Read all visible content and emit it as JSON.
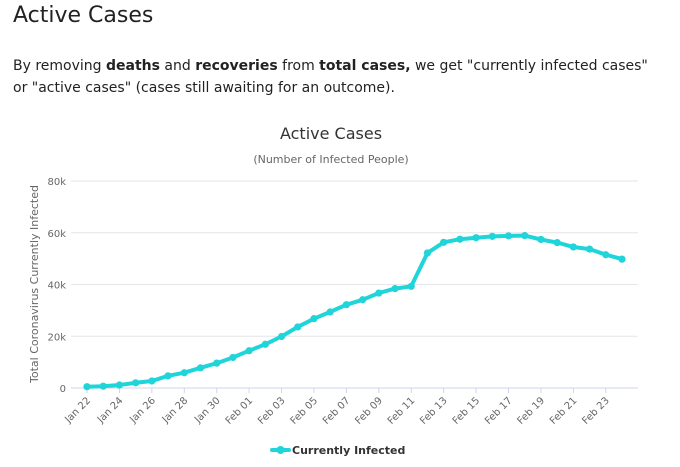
{
  "section": {
    "title": "Active Cases",
    "intro": {
      "t1": "By removing ",
      "b1": "deaths",
      "t2": " and ",
      "b2": "recoveries",
      "t3": " from ",
      "b3": "total cases,",
      "t4": " we get \"currently infected cases\" or \"active cases\" (cases still awaiting for an outcome)."
    }
  },
  "colors": {
    "series": "#1fd5d9",
    "grid": "#e6e6e6",
    "axis": "#ccd6eb"
  },
  "chart_data": {
    "type": "line",
    "title": "Active Cases",
    "subtitle": "(Number of Infected People)",
    "xlabel": "",
    "ylabel": "Total Coronavirus Currently Infected",
    "ylim": [
      0,
      80000
    ],
    "yticks": [
      0,
      20000,
      40000,
      60000,
      80000
    ],
    "ytick_labels": [
      "0",
      "20k",
      "40k",
      "60k",
      "80k"
    ],
    "grid": true,
    "legend_position": "bottom-center",
    "x": [
      "Jan 22",
      "Jan 23",
      "Jan 24",
      "Jan 25",
      "Jan 26",
      "Jan 27",
      "Jan 28",
      "Jan 29",
      "Jan 30",
      "Jan 31",
      "Feb 01",
      "Feb 02",
      "Feb 03",
      "Feb 04",
      "Feb 05",
      "Feb 06",
      "Feb 07",
      "Feb 08",
      "Feb 09",
      "Feb 10",
      "Feb 11",
      "Feb 12",
      "Feb 13",
      "Feb 14",
      "Feb 15",
      "Feb 16",
      "Feb 17",
      "Feb 18",
      "Feb 19",
      "Feb 20",
      "Feb 21",
      "Feb 22",
      "Feb 23",
      "Feb 24"
    ],
    "x_tick_labels": [
      "Jan 22",
      "Jan 24",
      "Jan 26",
      "Jan 28",
      "Jan 30",
      "Feb 01",
      "Feb 03",
      "Feb 05",
      "Feb 07",
      "Feb 09",
      "Feb 11",
      "Feb 13",
      "Feb 15",
      "Feb 17",
      "Feb 19",
      "Feb 21",
      "Feb 23"
    ],
    "series": [
      {
        "name": "Currently Infected",
        "values": [
          510,
          700,
          1150,
          2000,
          2700,
          4700,
          5900,
          7800,
          9600,
          11800,
          14400,
          16900,
          19900,
          23600,
          26800,
          29400,
          32200,
          34100,
          36700,
          38400,
          39300,
          52200,
          56300,
          57500,
          58100,
          58600,
          58800,
          58900,
          57400,
          56200,
          54500,
          53700,
          51500,
          49800
        ]
      }
    ]
  }
}
